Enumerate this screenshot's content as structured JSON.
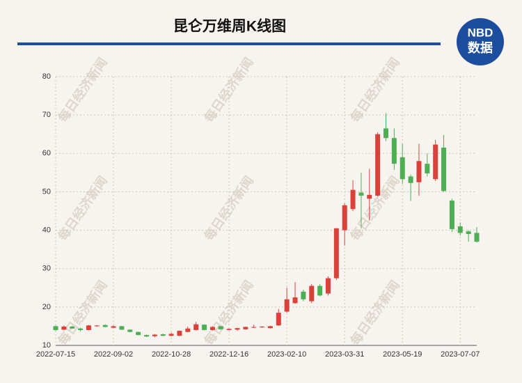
{
  "chart_data": {
    "type": "candlestick",
    "title": "昆仑万维周K线图",
    "logo_top": "NBD",
    "logo_bottom": "数据",
    "watermark": "每日经济新闻",
    "categories": [
      "2022-07-15",
      null,
      null,
      null,
      null,
      null,
      null,
      "2022-09-02",
      null,
      null,
      null,
      null,
      null,
      null,
      "2022-10-28",
      null,
      null,
      null,
      null,
      null,
      null,
      "2022-12-16",
      null,
      null,
      null,
      null,
      null,
      null,
      "2023-02-10",
      null,
      null,
      null,
      null,
      null,
      null,
      "2023-03-31",
      null,
      null,
      null,
      null,
      null,
      null,
      "2023-05-19",
      null,
      null,
      null,
      null,
      null,
      null,
      "2023-07-07",
      null,
      null
    ],
    "series": [
      {
        "open": [
          15.0,
          14.1,
          14.9,
          14.4,
          14.0,
          15.0,
          15.3,
          14.6,
          15.0,
          14.1,
          13.5,
          12.7,
          12.4,
          12.9,
          12.5,
          12.5,
          13.5,
          14.0,
          15.4,
          14.0,
          15.0,
          14.0,
          14.1,
          14.2,
          14.6,
          14.7,
          14.5,
          15.2,
          18.8,
          21.0,
          24.0,
          21.5,
          25.5,
          23.5,
          27.5,
          40.0,
          45.5,
          49.8,
          48.2,
          49.0,
          66.5,
          64.0,
          59.0,
          54.0,
          52.5,
          57.3,
          53.3,
          61.5,
          47.7,
          41.0,
          39.7,
          39.3
        ],
        "high": [
          15.2,
          15.2,
          15.0,
          14.6,
          15.3,
          15.3,
          15.5,
          15.2,
          15.1,
          14.2,
          13.6,
          12.8,
          13.0,
          13.1,
          13.3,
          13.9,
          14.9,
          16.1,
          15.5,
          15.0,
          15.1,
          14.4,
          14.6,
          14.9,
          15.4,
          15.0,
          15.1,
          19.5,
          25.0,
          26.5,
          24.5,
          26.0,
          26.0,
          28.0,
          40.5,
          47.0,
          53.0,
          55.0,
          56.0,
          65.5,
          70.5,
          66.5,
          62.5,
          54.5,
          62.5,
          60.0,
          63.5,
          64.8,
          48.2,
          42.0,
          40.0,
          40.8
        ],
        "low": [
          13.8,
          13.9,
          14.3,
          13.6,
          13.9,
          14.9,
          14.7,
          14.5,
          14.0,
          13.4,
          12.6,
          12.2,
          12.1,
          12.4,
          12.4,
          12.4,
          13.4,
          13.9,
          13.9,
          13.8,
          14.1,
          13.9,
          13.8,
          14.1,
          14.5,
          14.6,
          14.4,
          15.1,
          18.5,
          20.8,
          21.5,
          21.0,
          22.8,
          23.0,
          27.0,
          36.0,
          45.0,
          40.5,
          42.5,
          48.8,
          63.2,
          55.7,
          52.0,
          47.6,
          49.0,
          54.0,
          52.8,
          50.0,
          39.5,
          38.6,
          37.0,
          36.8
        ],
        "close": [
          14.0,
          14.9,
          14.4,
          14.0,
          15.2,
          15.2,
          14.8,
          15.0,
          14.1,
          13.5,
          12.7,
          12.3,
          12.8,
          12.5,
          13.0,
          13.8,
          14.4,
          15.5,
          14.0,
          14.8,
          14.2,
          14.3,
          14.5,
          14.8,
          14.8,
          14.9,
          15.0,
          18.5,
          22.0,
          22.5,
          22.0,
          25.5,
          23.0,
          27.5,
          40.5,
          46.5,
          50.5,
          49.0,
          49.2,
          65.0,
          64.0,
          57.3,
          53.3,
          52.3,
          58.0,
          54.8,
          62.3,
          50.2,
          40.3,
          39.3,
          39.0,
          37.0
        ]
      }
    ],
    "up_color": "#d9413b",
    "down_color": "#4eae53",
    "ylim": [
      10,
      80
    ],
    "yticks": [
      10,
      20,
      30,
      40,
      50,
      60,
      70,
      80
    ],
    "grid": true
  }
}
